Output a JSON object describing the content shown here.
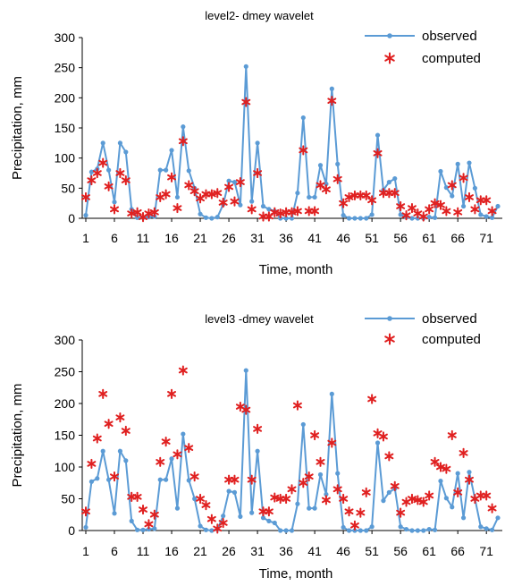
{
  "chart_data": [
    {
      "type": "line",
      "title": "level2- dmey wavelet",
      "xlabel": "Time, month",
      "ylabel": "Precipitation, mm",
      "ylim": [
        0,
        300
      ],
      "yticks": [
        "0",
        "50",
        "100",
        "150",
        "200",
        "250",
        "300"
      ],
      "xticks": [
        "1",
        "6",
        "11",
        "16",
        "21",
        "26",
        "31",
        "36",
        "41",
        "46",
        "51",
        "56",
        "61",
        "66",
        "71"
      ],
      "legend_position": "top-right",
      "series": [
        {
          "name": "observed",
          "style": "line-dot",
          "color": "#5b9bd5",
          "values": [
            5,
            77,
            82,
            125,
            80,
            27,
            125,
            110,
            15,
            1,
            1,
            2,
            3,
            80,
            80,
            113,
            35,
            152,
            79,
            50,
            7,
            1,
            0,
            2,
            23,
            62,
            60,
            22,
            252,
            28,
            125,
            20,
            15,
            12,
            0,
            0,
            0,
            42,
            167,
            35,
            35,
            88,
            57,
            215,
            90,
            5,
            0,
            0,
            0,
            0,
            6,
            138,
            47,
            60,
            66,
            6,
            2,
            0,
            0,
            0,
            2,
            1,
            78,
            51,
            37,
            90,
            20,
            92,
            50,
            6,
            3,
            1,
            20
          ]
        },
        {
          "name": "computed",
          "style": "marker",
          "color": "#e02020",
          "values": [
            35,
            63,
            75,
            92,
            53,
            15,
            75,
            63,
            8,
            10,
            2,
            8,
            10,
            35,
            40,
            68,
            17,
            128,
            55,
            45,
            33,
            40,
            40,
            42,
            26,
            52,
            28,
            60,
            193,
            15,
            75,
            3,
            3,
            10,
            8,
            10,
            10,
            12,
            113,
            12,
            12,
            55,
            48,
            195,
            65,
            25,
            35,
            38,
            38,
            38,
            30,
            108,
            42,
            42,
            42,
            20,
            5,
            17,
            8,
            3,
            15,
            25,
            22,
            12,
            55,
            10,
            67,
            35,
            15,
            30,
            30,
            12
          ]
        }
      ]
    },
    {
      "type": "line",
      "title": "level3 -dmey wavelet",
      "xlabel": "Time, month",
      "ylabel": "Precipitation, mm",
      "ylim": [
        0,
        300
      ],
      "yticks": [
        "0",
        "50",
        "100",
        "150",
        "200",
        "250",
        "300"
      ],
      "xticks": [
        "1",
        "6",
        "11",
        "16",
        "21",
        "26",
        "31",
        "36",
        "41",
        "46",
        "51",
        "56",
        "61",
        "66",
        "71"
      ],
      "legend_position": "top-right",
      "series": [
        {
          "name": "observed",
          "style": "line-dot",
          "color": "#5b9bd5",
          "values": [
            5,
            77,
            82,
            125,
            80,
            27,
            125,
            110,
            15,
            1,
            1,
            2,
            3,
            80,
            80,
            113,
            35,
            152,
            79,
            50,
            7,
            1,
            0,
            2,
            23,
            62,
            60,
            22,
            252,
            28,
            125,
            20,
            15,
            12,
            0,
            0,
            0,
            42,
            167,
            35,
            35,
            88,
            57,
            215,
            90,
            5,
            0,
            0,
            0,
            0,
            6,
            138,
            47,
            60,
            66,
            6,
            2,
            0,
            0,
            0,
            2,
            1,
            78,
            51,
            37,
            90,
            20,
            92,
            50,
            6,
            3,
            1,
            20
          ]
        },
        {
          "name": "computed",
          "style": "marker",
          "color": "#e02020",
          "values": [
            30,
            105,
            145,
            215,
            168,
            85,
            178,
            157,
            53,
            53,
            33,
            10,
            25,
            108,
            140,
            215,
            120,
            252,
            130,
            85,
            50,
            40,
            18,
            3,
            12,
            80,
            80,
            195,
            190,
            80,
            160,
            30,
            30,
            52,
            50,
            50,
            65,
            197,
            75,
            85,
            150,
            108,
            48,
            138,
            65,
            50,
            30,
            8,
            28,
            60,
            207,
            153,
            148,
            117,
            70,
            28,
            45,
            50,
            48,
            45,
            55,
            108,
            100,
            97,
            150,
            60,
            122,
            80,
            50,
            55,
            55,
            35
          ]
        }
      ]
    }
  ]
}
